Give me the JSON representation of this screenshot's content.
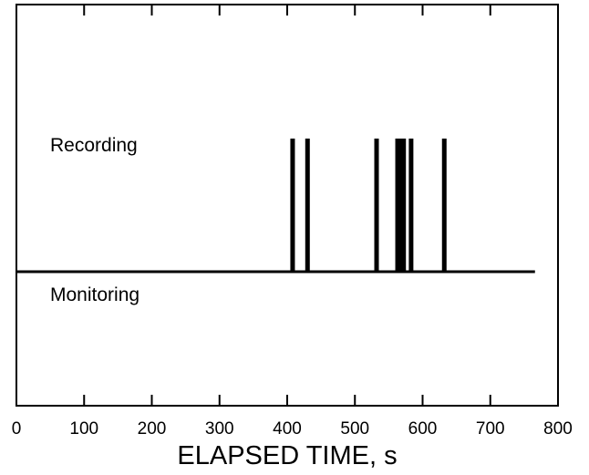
{
  "chart_data": {
    "type": "line",
    "title": "",
    "xlabel": "ELAPSED TIME, s",
    "ylabel": "",
    "xlim": [
      0,
      800
    ],
    "x_ticks": [
      0,
      100,
      200,
      300,
      400,
      500,
      600,
      700,
      800
    ],
    "grid": false,
    "state_labels": {
      "high": "Recording",
      "low": "Monitoring"
    },
    "series": [
      {
        "events_x": [
          408,
          430,
          532,
          563,
          568,
          572,
          583,
          632
        ],
        "end_x": 766
      }
    ]
  },
  "colors": {
    "line": "#000000",
    "frame": "#000000",
    "background": "#ffffff"
  }
}
